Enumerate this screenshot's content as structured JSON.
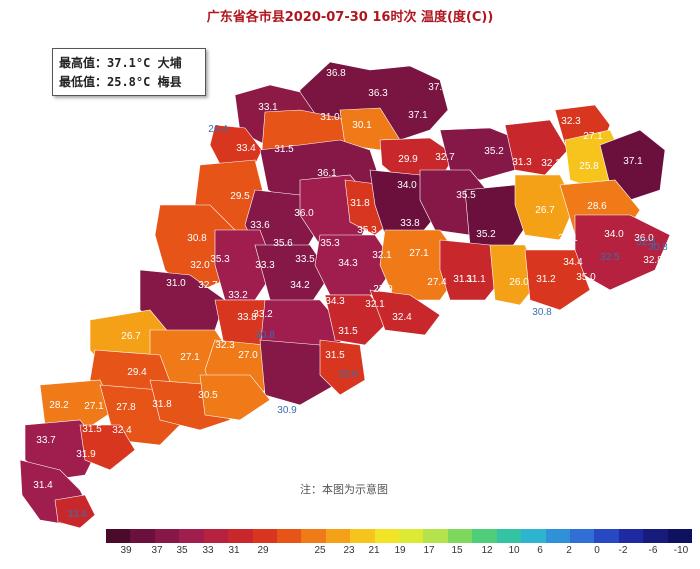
{
  "header": {
    "title": "广东省各市县2020-07-30 16时次 温度(度(C))"
  },
  "stats": {
    "max_label": "最高值：37.1°C 大埔",
    "min_label": "最低值：25.8°C 梅县"
  },
  "note": "注：本图为示意图",
  "legend": {
    "colors": [
      "#4a0a2a",
      "#6b0f3c",
      "#861848",
      "#a01e4e",
      "#b5213e",
      "#c8282c",
      "#d8361f",
      "#e65418",
      "#ef7a17",
      "#f4a118",
      "#f6c41c",
      "#f2e326",
      "#dcea34",
      "#b3e24a",
      "#7fd85e",
      "#4fce7a",
      "#34c4a4",
      "#2fb4cf",
      "#2f92d8",
      "#2f6fd6",
      "#2848c4",
      "#1e2aa2",
      "#161b7c",
      "#0e1160"
    ],
    "ticks": [
      "39",
      "37",
      "35",
      "33",
      "31",
      "29",
      "25",
      "23",
      "21",
      "19",
      "17",
      "15",
      "12",
      "10",
      "6",
      "2",
      "0",
      "-2",
      "-6",
      "-10"
    ]
  },
  "map": {
    "label_color": "#ffffff",
    "edge_label_color": "#3a6fb0",
    "readings": [
      {
        "v": "36.8"
      },
      {
        "v": "36.3"
      },
      {
        "v": "37.1"
      },
      {
        "v": "37.1"
      },
      {
        "v": "26.4"
      },
      {
        "v": "33.4"
      },
      {
        "v": "33.1"
      },
      {
        "v": "31.0"
      },
      {
        "v": "30.1"
      },
      {
        "v": "31.5"
      },
      {
        "v": "36.1"
      },
      {
        "v": "29.9"
      },
      {
        "v": "32.7"
      },
      {
        "v": "35.2"
      },
      {
        "v": "31.3"
      },
      {
        "v": "32.1"
      },
      {
        "v": "32.3"
      },
      {
        "v": "27.1"
      },
      {
        "v": "25.8"
      },
      {
        "v": "37.1"
      },
      {
        "v": "29.5"
      },
      {
        "v": "34.0"
      },
      {
        "v": "31.8"
      },
      {
        "v": "36.0"
      },
      {
        "v": "35.5"
      },
      {
        "v": "26.7"
      },
      {
        "v": "28.6"
      },
      {
        "v": "31.5"
      },
      {
        "v": "30.8"
      },
      {
        "v": "33.6"
      },
      {
        "v": "35.6"
      },
      {
        "v": "35.3"
      },
      {
        "v": "35.3"
      },
      {
        "v": "33.8"
      },
      {
        "v": "35.2"
      },
      {
        "v": "36.0"
      },
      {
        "v": "35.3"
      },
      {
        "v": "33.3"
      },
      {
        "v": "33.5"
      },
      {
        "v": "34.3"
      },
      {
        "v": "32.1"
      },
      {
        "v": "34.1"
      },
      {
        "v": "34.0"
      },
      {
        "v": "34.4"
      },
      {
        "v": "27.1"
      },
      {
        "v": "32.5"
      },
      {
        "v": "31.1"
      },
      {
        "v": "32.8"
      },
      {
        "v": "35.0"
      },
      {
        "v": "34.2"
      },
      {
        "v": "27.4"
      },
      {
        "v": "31.1"
      },
      {
        "v": "26.0"
      },
      {
        "v": "31.2"
      },
      {
        "v": "34.3"
      },
      {
        "v": "30.8"
      },
      {
        "v": "33.2"
      },
      {
        "v": "27.9"
      },
      {
        "v": "32.4"
      },
      {
        "v": "26.7"
      },
      {
        "v": "33.8"
      },
      {
        "v": "31.0"
      },
      {
        "v": "31.5"
      },
      {
        "v": "27.1"
      },
      {
        "v": "27.0"
      },
      {
        "v": "29.4"
      },
      {
        "v": "31.5"
      },
      {
        "v": "30.8"
      },
      {
        "v": "29.6"
      },
      {
        "v": "28.2"
      },
      {
        "v": "27.1"
      },
      {
        "v": "27.8"
      },
      {
        "v": "31.8"
      },
      {
        "v": "30.5"
      },
      {
        "v": "30.9"
      },
      {
        "v": "31.5"
      },
      {
        "v": "33.7"
      },
      {
        "v": "31.9"
      },
      {
        "v": "31.4"
      },
      {
        "v": "33.4"
      },
      {
        "v": "33.2"
      },
      {
        "v": "32.1"
      },
      {
        "v": "32.3"
      },
      {
        "v": "30.8"
      },
      {
        "v": "32.7"
      },
      {
        "v": "32.4"
      },
      {
        "v": "32.5"
      },
      {
        "v": "32.0"
      }
    ]
  }
}
